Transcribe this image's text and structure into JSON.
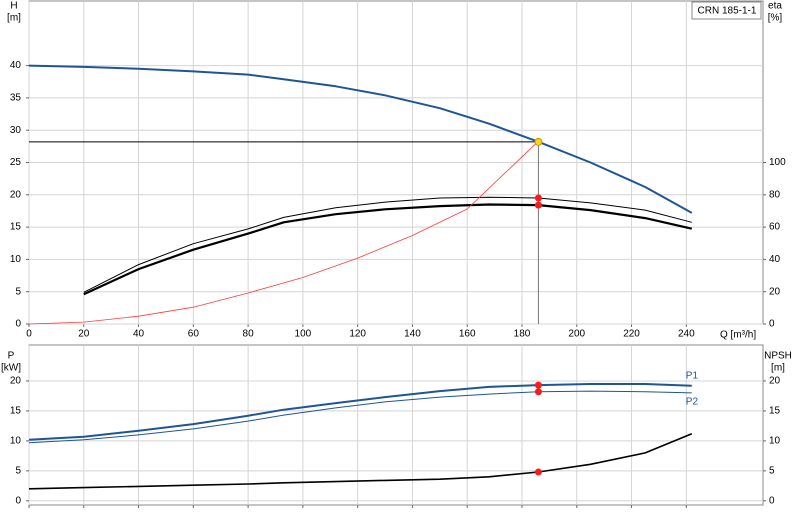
{
  "chart_data": [
    {
      "type": "line",
      "annotation": "CRN 185-1-1",
      "x_label": "Q [m³/h]",
      "y_label": [
        "H",
        "[m]"
      ],
      "y2_label": [
        "eta",
        "[%]"
      ],
      "xlim": [
        0,
        268
      ],
      "xticks": [
        0,
        20,
        40,
        60,
        80,
        100,
        120,
        140,
        160,
        180,
        200,
        220,
        240
      ],
      "ylim": [
        0,
        50
      ],
      "yticks": [
        0,
        5,
        10,
        15,
        20,
        25,
        30,
        35,
        40
      ],
      "y2lim": [
        0,
        200
      ],
      "y2ticks": [
        0,
        20,
        40,
        60,
        80,
        100
      ],
      "grid": true,
      "series": [
        {
          "color": "#1f5595",
          "width": 2,
          "x": [
            0,
            20,
            40,
            60,
            80,
            93,
            112,
            130,
            150,
            168,
            186,
            205,
            225,
            242
          ],
          "values": [
            40,
            39.8,
            39.5,
            39.1,
            38.6,
            37.9,
            36.8,
            35.4,
            33.4,
            31.0,
            28.2,
            25,
            21.2,
            17.2
          ]
        },
        {
          "color": "#000000",
          "width": 2.2,
          "axis": "y2",
          "x": [
            20,
            40,
            60,
            80,
            93,
            112,
            130,
            150,
            168,
            186,
            205,
            225,
            242
          ],
          "values": [
            18.4,
            34,
            46,
            56,
            63,
            68,
            71,
            73,
            74,
            73.6,
            70.5,
            65.6,
            59
          ]
        },
        {
          "color": "#000000",
          "width": 1,
          "axis": "y2",
          "x": [
            20,
            40,
            60,
            80,
            93,
            112,
            130,
            150,
            168,
            186,
            205,
            225,
            242
          ],
          "values": [
            19.6,
            36.8,
            49.7,
            58.9,
            66,
            72,
            75.5,
            78,
            78.5,
            78,
            75,
            70.5,
            63
          ]
        },
        {
          "color": "#ff3b3b",
          "width": 0.8,
          "x": [
            0,
            20,
            40,
            60,
            80,
            100,
            120,
            140,
            160,
            186
          ],
          "values": [
            0,
            0.3,
            1.2,
            2.6,
            4.8,
            7.2,
            10.2,
            13.7,
            17.8,
            28.3
          ]
        }
      ],
      "points": [
        {
          "x": 186,
          "y": 28.2,
          "color": "#ffd21f",
          "guide_lines": true
        },
        {
          "x": 186,
          "y": 78,
          "axis": "y2",
          "color": "#ff1a1a"
        },
        {
          "x": 186,
          "y": 73.6,
          "axis": "y2",
          "color": "#ff1a1a"
        }
      ]
    },
    {
      "type": "line",
      "y_label": [
        "P",
        "[kW]"
      ],
      "y2_label": [
        "NPSH",
        "[m]"
      ],
      "xlim": [
        0,
        268
      ],
      "xticks": [
        0,
        20,
        40,
        60,
        80,
        100,
        120,
        140,
        160,
        180,
        200,
        220,
        240
      ],
      "ylim": [
        -0.7,
        26
      ],
      "yticks": [
        0,
        5,
        10,
        15,
        20
      ],
      "y2lim": [
        -0.7,
        26
      ],
      "y2ticks": [
        0,
        5,
        10,
        15,
        20
      ],
      "grid": true,
      "series": [
        {
          "name": "P1",
          "color": "#1f5595",
          "width": 2,
          "x": [
            0,
            20,
            40,
            60,
            80,
            93,
            112,
            130,
            150,
            168,
            186,
            205,
            225,
            242
          ],
          "values": [
            10.2,
            10.7,
            11.7,
            12.8,
            14.2,
            15.2,
            16.3,
            17.3,
            18.3,
            19,
            19.3,
            19.5,
            19.5,
            19.2
          ]
        },
        {
          "name": "P2",
          "color": "#1f5595",
          "width": 1,
          "x": [
            0,
            20,
            40,
            60,
            80,
            93,
            112,
            130,
            150,
            168,
            186,
            205,
            225,
            242
          ],
          "values": [
            9.7,
            10.2,
            11,
            12,
            13.3,
            14.3,
            15.5,
            16.5,
            17.3,
            17.8,
            18.2,
            18.3,
            18.2,
            18
          ]
        },
        {
          "color": "#000000",
          "width": 1.6,
          "axis": "y2",
          "x": [
            0,
            20,
            40,
            60,
            80,
            93,
            130,
            150,
            168,
            186,
            205,
            225,
            242
          ],
          "values": [
            2,
            2.2,
            2.4,
            2.6,
            2.8,
            3.0,
            3.4,
            3.6,
            4.0,
            4.8,
            6.1,
            8.0,
            11.2
          ]
        }
      ],
      "points": [
        {
          "x": 186,
          "y": 19.3,
          "color": "#ff1a1a"
        },
        {
          "x": 186,
          "y": 18.2,
          "color": "#ff1a1a"
        },
        {
          "x": 186,
          "y": 4.8,
          "axis": "y2",
          "color": "#ff1a1a"
        }
      ]
    }
  ]
}
